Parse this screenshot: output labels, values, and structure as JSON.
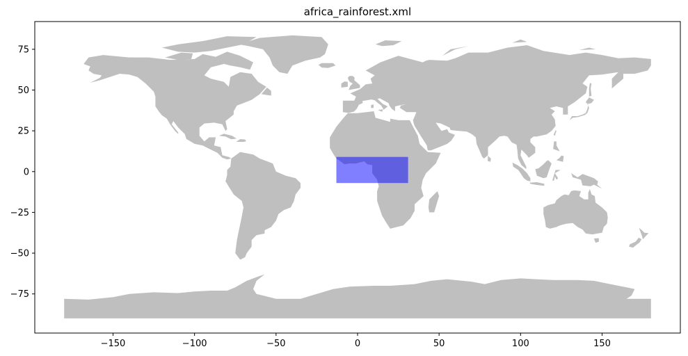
{
  "title": "africa_rainforest.xml",
  "colors": {
    "land": "#bfbfbf",
    "region": "#0000ff",
    "region_alpha": 0.5,
    "axes": "#000000",
    "background": "#ffffff"
  },
  "chart_data": {
    "type": "map",
    "title": "africa_rainforest.xml",
    "xlabel": "",
    "ylabel": "",
    "xlim": [
      -198,
      198
    ],
    "ylim": [
      -99,
      92
    ],
    "grid": false,
    "x_ticks": [
      -150,
      -100,
      -50,
      0,
      50,
      100,
      150
    ],
    "y_ticks": [
      75,
      50,
      25,
      0,
      -25,
      -50,
      -75
    ],
    "x_tick_labels": [
      "−150",
      "−100",
      "−50",
      "0",
      "50",
      "100",
      "150"
    ],
    "y_tick_labels": [
      "75",
      "50",
      "25",
      "0",
      "−25",
      "−50",
      "−75"
    ],
    "region": {
      "name": "africa_rainforest",
      "lon_min": -13,
      "lon_max": 31,
      "lat_min": -7,
      "lat_max": 9
    },
    "basemap": "world land polygons (grey)"
  }
}
